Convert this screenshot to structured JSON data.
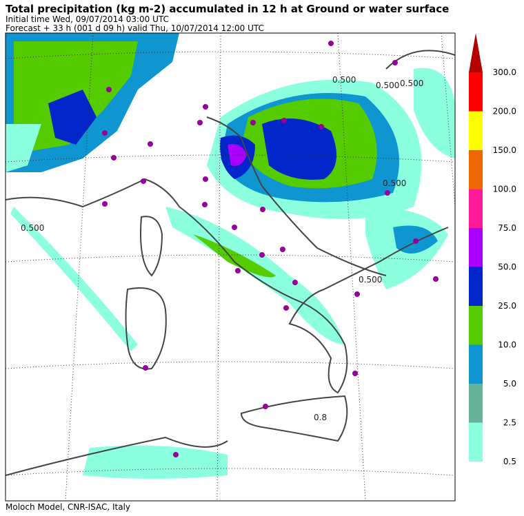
{
  "header": {
    "title": "Total precipitation (kg m-2) accumulated in  12 h at Ground or water surface",
    "lines": [
      "Initial time  Wed, 09/07/2014  03:00 UTC",
      "Forecast  +  33 h  (001 d 09 h)  valid Thu, 10/07/2014 12:00 UTC"
    ]
  },
  "map_labels": [
    "0.500",
    "0.500",
    "0.500",
    "0.500",
    "0.500",
    "0.500",
    "0.8"
  ],
  "legend": {
    "labels": [
      "0.5",
      "2.5",
      "5.0",
      "10.0",
      "25.0",
      "50.0",
      "75.0",
      "100.0",
      "150.0",
      "200.0",
      "300.0"
    ],
    "colors": [
      "#8cffdf",
      "#66b39a",
      "#0f95cf",
      "#55cc00",
      "#0026c9",
      "#aa00ff",
      "#ff1a9a",
      "#ee6600",
      "#ffff00",
      "#ff0000",
      "#b30000"
    ]
  },
  "footer": "Moloch Model, CNR-ISAC, Italy"
}
